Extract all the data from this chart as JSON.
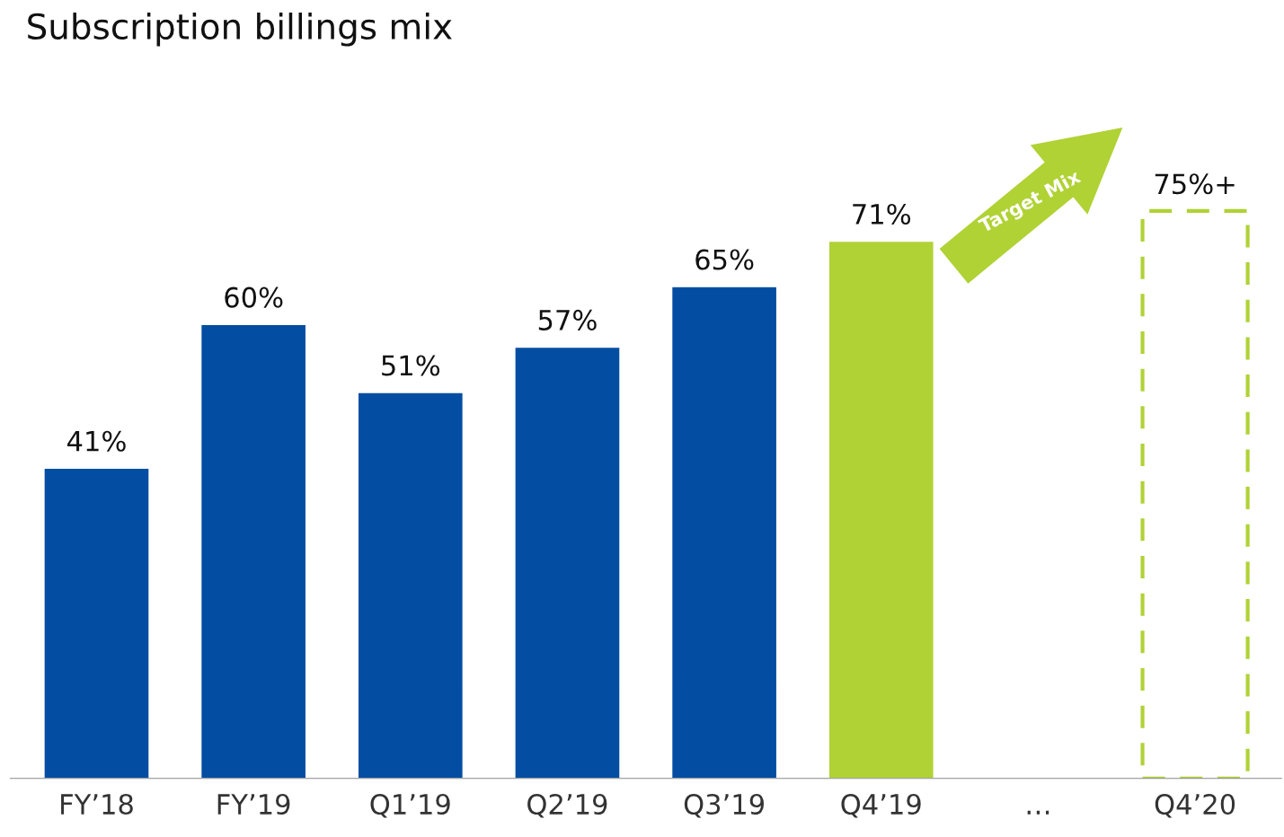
{
  "chart_data": {
    "type": "bar",
    "title": "Subscription billings mix",
    "categories": [
      "FY’18",
      "FY’19",
      "Q1’19",
      "Q2’19",
      "Q3’19",
      "Q4’19",
      "…",
      "Q4’20"
    ],
    "series": [
      {
        "colors": [
          "#034ea2",
          "#034ea2",
          "#034ea2",
          "#034ea2",
          "#034ea2",
          "#b0d235",
          null,
          null
        ],
        "values": [
          41,
          60,
          51,
          57,
          65,
          71,
          null,
          null
        ],
        "value_labels": [
          "41%",
          "60%",
          "51%",
          "57%",
          "65%",
          "71%",
          null,
          null
        ]
      },
      {
        "color": "#b0d235",
        "line_style": "dashed",
        "values": [
          null,
          null,
          null,
          null,
          null,
          null,
          null,
          75
        ],
        "value_labels": [
          null,
          null,
          null,
          null,
          null,
          null,
          null,
          "75%+"
        ]
      }
    ],
    "annotations": [
      "Target Mix"
    ],
    "grid": false,
    "legend": false
  }
}
